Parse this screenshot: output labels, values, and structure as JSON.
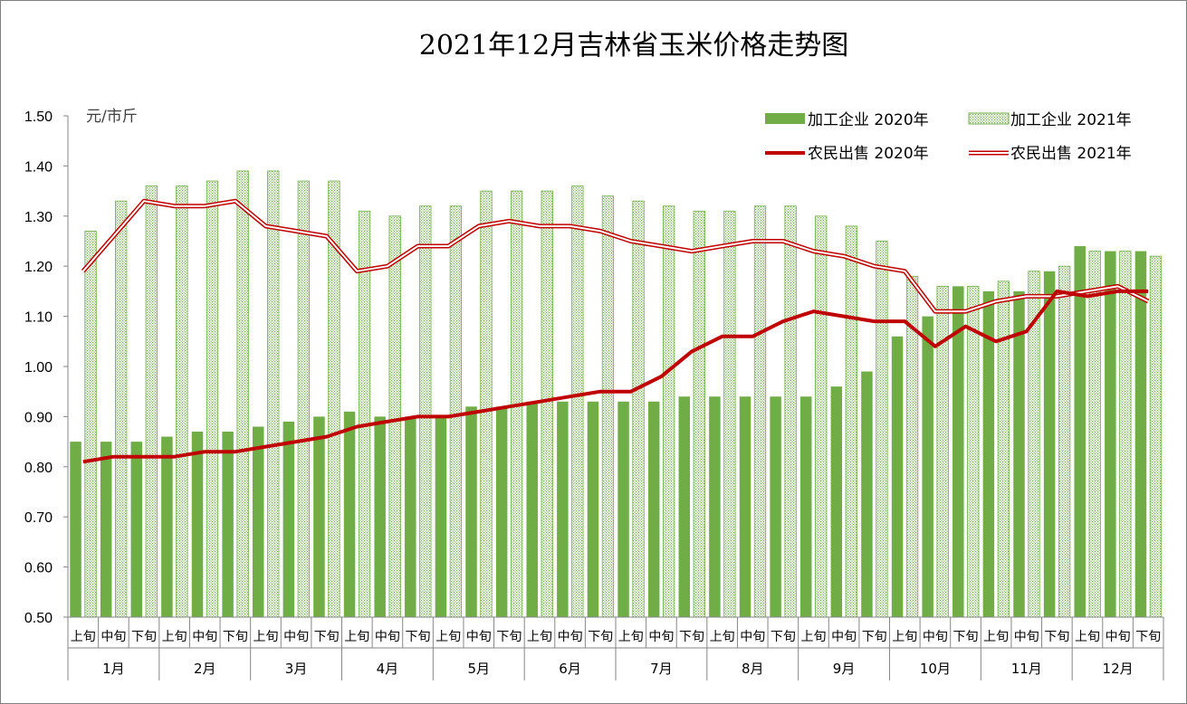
{
  "chart_data": {
    "type": "bar",
    "title": "2021年12月吉林省玉米价格走势图",
    "unit_label": "元/市斤",
    "ylim": [
      0.5,
      1.5
    ],
    "yticks": [
      "1.50",
      "1.40",
      "1.30",
      "1.20",
      "1.10",
      "1.00",
      "0.90",
      "0.80",
      "0.70",
      "0.60",
      "0.50"
    ],
    "ytick_values": [
      1.5,
      1.4,
      1.3,
      1.2,
      1.1,
      1.0,
      0.9,
      0.8,
      0.7,
      0.6,
      0.5
    ],
    "months": [
      "1月",
      "2月",
      "3月",
      "4月",
      "5月",
      "6月",
      "7月",
      "8月",
      "9月",
      "10月",
      "11月",
      "12月"
    ],
    "periods": [
      "上旬",
      "中旬",
      "下旬"
    ],
    "legend_position": "top-right",
    "series": [
      {
        "name": "加工企业 2020年",
        "kind": "bar",
        "color": "#70ad47",
        "values": [
          0.85,
          0.85,
          0.85,
          0.86,
          0.87,
          0.87,
          0.88,
          0.89,
          0.9,
          0.91,
          0.9,
          0.9,
          0.9,
          0.92,
          0.92,
          0.93,
          0.93,
          0.93,
          0.93,
          0.93,
          0.94,
          0.94,
          0.94,
          0.94,
          0.94,
          0.96,
          0.99,
          1.06,
          1.1,
          1.16,
          1.15,
          1.15,
          1.19,
          1.24,
          1.23,
          1.23
        ]
      },
      {
        "name": "加工企业 2021年",
        "kind": "bar",
        "color": "#70ad47",
        "pattern": "dotted",
        "values": [
          1.27,
          1.33,
          1.36,
          1.36,
          1.37,
          1.39,
          1.39,
          1.37,
          1.37,
          1.31,
          1.3,
          1.32,
          1.32,
          1.35,
          1.35,
          1.35,
          1.36,
          1.34,
          1.33,
          1.32,
          1.31,
          1.31,
          1.32,
          1.32,
          1.3,
          1.28,
          1.25,
          1.18,
          1.16,
          1.16,
          1.17,
          1.19,
          1.2,
          1.23,
          1.23,
          1.22
        ]
      },
      {
        "name": "农民出售 2020年",
        "kind": "line",
        "color": "#c00000",
        "values": [
          0.81,
          0.82,
          0.82,
          0.82,
          0.83,
          0.83,
          0.84,
          0.85,
          0.86,
          0.88,
          0.89,
          0.9,
          0.9,
          0.91,
          0.92,
          0.93,
          0.94,
          0.95,
          0.95,
          0.98,
          1.03,
          1.06,
          1.06,
          1.09,
          1.11,
          1.1,
          1.09,
          1.09,
          1.04,
          1.08,
          1.05,
          1.07,
          1.15,
          1.14,
          1.15,
          1.15
        ]
      },
      {
        "name": "农民出售 2021年",
        "kind": "line",
        "color": "#c00000",
        "style": "double",
        "values": [
          1.19,
          1.26,
          1.33,
          1.32,
          1.32,
          1.33,
          1.28,
          1.27,
          1.26,
          1.19,
          1.2,
          1.24,
          1.24,
          1.28,
          1.29,
          1.28,
          1.28,
          1.27,
          1.25,
          1.24,
          1.23,
          1.24,
          1.25,
          1.25,
          1.23,
          1.22,
          1.2,
          1.19,
          1.11,
          1.11,
          1.13,
          1.14,
          1.14,
          1.15,
          1.16,
          1.13
        ]
      }
    ]
  }
}
